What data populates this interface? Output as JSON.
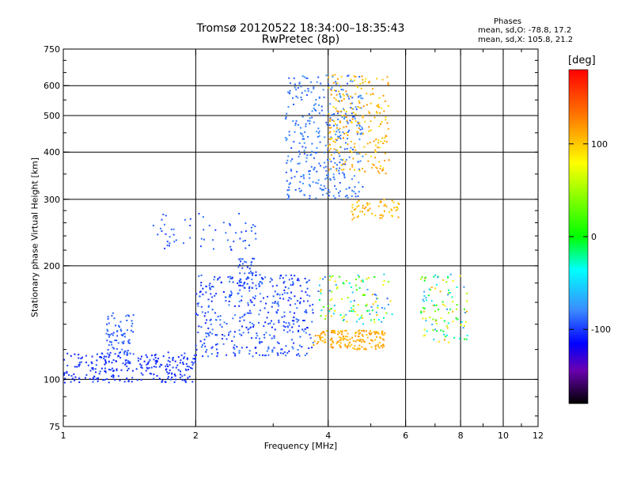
{
  "chart_data": {
    "type": "scatter",
    "title": "Tromsø 20120522 18:34:00–18:35:43",
    "subtitle": "RwPretec (8p)",
    "phase_header": {
      "label": "Phases",
      "line_o": "mean, sd,O: -78.8, 17.2",
      "line_x": "mean, sd,X: 105.8, 21.2"
    },
    "xlabel": "Frequency [MHz]",
    "ylabel": "Stationary phase Virtual Height [km]",
    "x_scale": "log",
    "y_scale": "log",
    "xlim": [
      1,
      12
    ],
    "ylim": [
      75,
      750
    ],
    "x_ticks": [
      1,
      2,
      4,
      6,
      8,
      10,
      12
    ],
    "x_tick_labels": [
      "1",
      "2",
      "4",
      "6",
      "8",
      "10",
      "12"
    ],
    "y_ticks": [
      75,
      100,
      200,
      300,
      400,
      500,
      600,
      750
    ],
    "y_tick_labels": [
      "75",
      "100",
      "200",
      "300",
      "400",
      "500",
      "600",
      "750"
    ],
    "grid": true,
    "colorbar": {
      "unit": "[deg]",
      "range": [
        -180,
        180
      ],
      "ticks": [
        100,
        0,
        -100
      ],
      "tick_labels": [
        "100",
        "0",
        "-100"
      ]
    },
    "clusters": [
      {
        "name": "low_e_band",
        "f": [
          1.0,
          2.0
        ],
        "h": [
          98,
          118
        ],
        "phase": [
          -110,
          -95
        ],
        "n": 260
      },
      {
        "name": "e_bump_1_3",
        "f": [
          1.25,
          1.45
        ],
        "h": [
          110,
          150
        ],
        "phase": [
          -100,
          -85
        ],
        "n": 80
      },
      {
        "name": "e_region_mid",
        "f": [
          2.0,
          3.7
        ],
        "h": [
          115,
          190
        ],
        "phase": [
          -110,
          -80
        ],
        "n": 420
      },
      {
        "name": "e_region_upper",
        "f": [
          2.5,
          2.75
        ],
        "h": [
          170,
          210
        ],
        "phase": [
          -105,
          -85
        ],
        "n": 40
      },
      {
        "name": "e_x_orange",
        "f": [
          3.7,
          5.4
        ],
        "h": [
          120,
          135
        ],
        "phase": [
          100,
          125
        ],
        "n": 170
      },
      {
        "name": "es_x_mixed",
        "f": [
          3.8,
          5.6
        ],
        "h": [
          140,
          190
        ],
        "phase": [
          -95,
          110
        ],
        "n": 120
      },
      {
        "name": "f1_trace",
        "f": [
          1.6,
          2.8
        ],
        "h": [
          220,
          275
        ],
        "phase": [
          -100,
          -85
        ],
        "n": 60
      },
      {
        "name": "f2_o_trace",
        "f": [
          3.2,
          4.8
        ],
        "h": [
          300,
          640
        ],
        "phase": [
          -95,
          -75
        ],
        "n": 360
      },
      {
        "name": "f2_x_trace",
        "f": [
          4.0,
          5.5
        ],
        "h": [
          350,
          650
        ],
        "phase": [
          90,
          125
        ],
        "n": 220
      },
      {
        "name": "f2_x_low",
        "f": [
          4.5,
          5.8
        ],
        "h": [
          265,
          300
        ],
        "phase": [
          95,
          120
        ],
        "n": 60
      },
      {
        "name": "scatter_7mhz",
        "f": [
          6.5,
          8.3
        ],
        "h": [
          125,
          190
        ],
        "phase": [
          -80,
          120
        ],
        "n": 110
      }
    ]
  }
}
